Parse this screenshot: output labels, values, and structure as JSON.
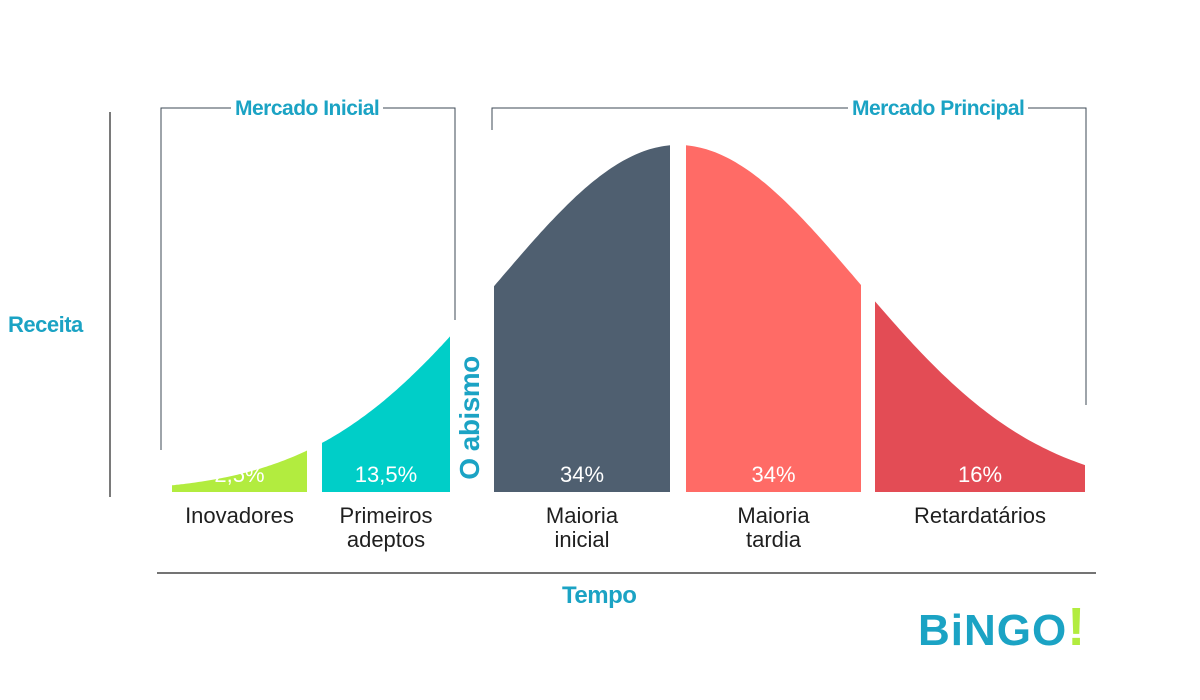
{
  "chart_data": {
    "type": "area",
    "title": "",
    "xlabel": "Tempo",
    "ylabel": "Receita",
    "categories": [
      "Inovadores",
      "Primeiros adeptos",
      "Maioria inicial",
      "Maioria tardia",
      "Retardatários"
    ],
    "category_display": [
      [
        "Inovadores"
      ],
      [
        "Primeiros",
        "adeptos"
      ],
      [
        "Maioria",
        "inicial"
      ],
      [
        "Maioria",
        "tardia"
      ],
      [
        "Retardatários"
      ]
    ],
    "values": [
      2.5,
      13.5,
      34,
      34,
      16
    ],
    "value_labels": [
      "2,5%",
      "13,5%",
      "34%",
      "34%",
      "16%"
    ],
    "colors": [
      "#b2ec3f",
      "#00cec8",
      "#4f5f70",
      "#ff6b66",
      "#e34c55"
    ],
    "groups": [
      {
        "label": "Mercado Inicial",
        "categories": [
          "Inovadores",
          "Primeiros adeptos"
        ]
      },
      {
        "label": "Mercado Principal",
        "categories": [
          "Maioria inicial",
          "Maioria tardia",
          "Retardatários"
        ]
      }
    ],
    "gap_label": "O abismo",
    "accent_color": "#1ba3c4"
  },
  "logo": {
    "text": "BiNGO!",
    "colors": [
      "#1ba3c4",
      "#b2ec3f"
    ]
  }
}
